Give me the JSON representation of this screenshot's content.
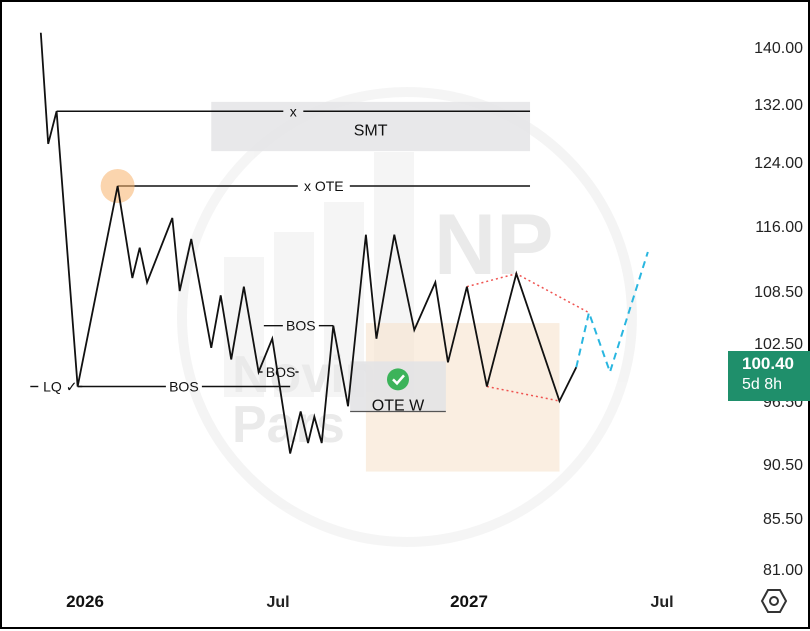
{
  "chart_data": {
    "type": "line",
    "y_axis": {
      "ticks": [
        "140.00",
        "132.00",
        "124.00",
        "116.00",
        "108.50",
        "102.50",
        "96.50",
        "90.50",
        "85.50",
        "81.00"
      ],
      "position": "right"
    },
    "x_axis": {
      "ticks": [
        {
          "label": "2026",
          "bold": true
        },
        {
          "label": "Jul",
          "bold": false
        },
        {
          "label": "2027",
          "bold": true
        },
        {
          "label": "Jul",
          "bold": false
        }
      ]
    },
    "series": [
      {
        "style": "solid",
        "color": "#111111",
        "points": [
          [
            "2025-11-20",
            142.0
          ],
          [
            "2025-11-27",
            126.5
          ],
          [
            "2025-12-05",
            131.0
          ],
          [
            "2025-12-25",
            98.0
          ],
          [
            "2026-02-01",
            121.0
          ],
          [
            "2026-02-15",
            110.0
          ],
          [
            "2026-02-22",
            113.5
          ],
          [
            "2026-03-01",
            109.5
          ],
          [
            "2026-03-25",
            117.0
          ],
          [
            "2026-04-01",
            108.5
          ],
          [
            "2026-04-12",
            114.5
          ],
          [
            "2026-05-01",
            102.0
          ],
          [
            "2026-05-10",
            108.0
          ],
          [
            "2026-05-20",
            100.8
          ],
          [
            "2026-06-01",
            109.0
          ],
          [
            "2026-06-15",
            99.5
          ],
          [
            "2026-06-28",
            103.0
          ],
          [
            "2026-07-15",
            91.5
          ],
          [
            "2026-07-25",
            95.5
          ],
          [
            "2026-08-01",
            92.5
          ],
          [
            "2026-08-07",
            95.0
          ],
          [
            "2026-08-14",
            92.5
          ],
          [
            "2026-08-25",
            104.5
          ],
          [
            "2026-09-08",
            96.0
          ],
          [
            "2026-09-25",
            115.0
          ],
          [
            "2026-10-05",
            103.0
          ],
          [
            "2026-10-22",
            115.0
          ],
          [
            "2026-11-10",
            104.0
          ],
          [
            "2026-11-30",
            109.5
          ],
          [
            "2026-12-12",
            100.5
          ],
          [
            "2026-12-30",
            109.0
          ],
          [
            "2027-01-18",
            98.0
          ],
          [
            "2027-02-15",
            110.5
          ],
          [
            "2027-03-28",
            96.5
          ],
          [
            "2027-04-13",
            100.0
          ]
        ]
      },
      {
        "style": "dashed",
        "color": "#29b6e0",
        "points": [
          [
            "2027-04-13",
            100.0
          ],
          [
            "2027-04-25",
            106.0
          ],
          [
            "2027-05-15",
            99.5
          ],
          [
            "2027-06-20",
            113.0
          ]
        ]
      }
    ],
    "channel": {
      "style": "dotted",
      "color": "#ef5350",
      "upper": [
        [
          "2026-12-30",
          109.0
        ],
        [
          "2027-02-15",
          110.5
        ],
        [
          "2027-04-25",
          106.0
        ]
      ],
      "lower": [
        [
          "2027-01-18",
          98.0
        ],
        [
          "2027-03-28",
          96.5
        ]
      ]
    },
    "zones": [
      {
        "label": "SMT",
        "color": "#e5e5e8",
        "start": "2026-05-01",
        "end": "2027-02-28",
        "top": 132.3,
        "bottom": 125.5
      },
      {
        "label": "OTE W",
        "color": "#e3e3e6",
        "start": "2026-09-10",
        "end": "2026-12-10",
        "top": 100.6,
        "bottom": 95.5,
        "check": true
      },
      {
        "label": "",
        "color": "#f6e3cd",
        "start": "2026-09-25",
        "end": "2027-03-28",
        "top": 104.8,
        "bottom": 89.8
      }
    ],
    "levels": [
      {
        "label": "x",
        "y": 131.0,
        "start": "2025-12-05",
        "end": "2027-02-28"
      },
      {
        "label": "x OTE",
        "y": 121.0,
        "start": "2026-02-01",
        "end": "2027-02-28"
      },
      {
        "label": "LQ ✓",
        "y": 98.0,
        "start": "2025-11-10",
        "end": "2025-12-25"
      },
      {
        "label": "BOS",
        "y": 98.0,
        "start": "2025-12-25",
        "end": "2026-07-15"
      },
      {
        "label": "BOS",
        "y": 99.5,
        "start": "2026-06-15",
        "end": "2026-07-20"
      },
      {
        "label": "BOS",
        "y": 104.5,
        "start": "2026-06-20",
        "end": "2026-08-25"
      },
      {
        "label": "",
        "y": 95.5,
        "start": "2026-09-10",
        "end": "2026-12-10"
      }
    ],
    "highlight_point": [
      "2026-02-01",
      121.0
    ],
    "current_price": {
      "value": "100.40",
      "countdown": "5d 8h"
    },
    "watermark": {
      "logo": "NP",
      "text": [
        "Novin",
        "Pars"
      ]
    },
    "grid": false
  },
  "toolbar": {
    "settings_icon": "settings-hexagon-icon"
  }
}
